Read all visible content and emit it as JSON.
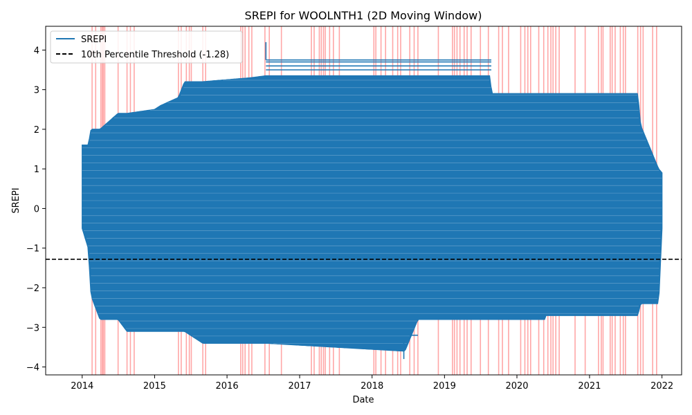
{
  "chart_data": {
    "type": "line",
    "title": "SREPI for WOOLNTH1 (2D Moving Window)",
    "xlabel": "Date",
    "ylabel": "SREPI",
    "xlim": [
      "2013-07-01",
      "2022-04-10"
    ],
    "ylim": [
      -4.2,
      4.6
    ],
    "x_ticks": [
      "2014",
      "2015",
      "2016",
      "2017",
      "2018",
      "2019",
      "2020",
      "2021",
      "2022"
    ],
    "y_ticks": [
      -4,
      -3,
      -2,
      -1,
      0,
      1,
      2,
      3,
      4
    ],
    "threshold": {
      "label": "10th Percentile Threshold (-1.28)",
      "value": -1.28,
      "color": "#000000",
      "style": "dashed"
    },
    "legend": {
      "placement": "top-left",
      "entries": [
        "SREPI",
        "10th Percentile Threshold (-1.28)"
      ]
    },
    "series": [
      {
        "name": "SREPI",
        "color": "#1f77b4",
        "band_start": "2014-01-01",
        "band_end": "2022-01-01",
        "band_points": [
          {
            "x": "2014-01-01",
            "ymin": -0.5,
            "ymax": 1.6
          },
          {
            "x": "2014-02-01",
            "ymin": -1.0,
            "ymax": 1.6
          },
          {
            "x": "2014-02-15",
            "ymin": -2.2,
            "ymax": 2.0
          },
          {
            "x": "2014-04-01",
            "ymin": -2.8,
            "ymax": 2.0
          },
          {
            "x": "2014-07-01",
            "ymin": -2.8,
            "ymax": 2.4
          },
          {
            "x": "2014-08-15",
            "ymin": -3.1,
            "ymax": 2.4
          },
          {
            "x": "2015-01-01",
            "ymin": -3.1,
            "ymax": 2.5
          },
          {
            "x": "2015-02-01",
            "ymin": -3.1,
            "ymax": 2.6
          },
          {
            "x": "2015-05-01",
            "ymin": -3.1,
            "ymax": 2.8
          },
          {
            "x": "2015-06-01",
            "ymin": -3.1,
            "ymax": 3.2
          },
          {
            "x": "2015-09-01",
            "ymin": -3.4,
            "ymax": 3.2
          },
          {
            "x": "2016-05-01",
            "ymin": -3.4,
            "ymax": 3.3
          },
          {
            "x": "2016-07-15",
            "ymin": -3.4,
            "ymax": 3.35
          },
          {
            "x": "2018-06-15",
            "ymin": -3.6,
            "ymax": 3.35
          },
          {
            "x": "2018-08-20",
            "ymin": -2.8,
            "ymax": 3.35
          },
          {
            "x": "2019-08-20",
            "ymin": -2.8,
            "ymax": 3.35
          },
          {
            "x": "2019-08-25",
            "ymin": -2.8,
            "ymax": 2.9
          },
          {
            "x": "2020-05-20",
            "ymin": -2.8,
            "ymax": 2.9
          },
          {
            "x": "2020-05-25",
            "ymin": -2.7,
            "ymax": 2.9
          },
          {
            "x": "2021-09-01",
            "ymin": -2.7,
            "ymax": 2.9
          },
          {
            "x": "2021-09-15",
            "ymin": -2.4,
            "ymax": 2.1
          },
          {
            "x": "2021-12-15",
            "ymin": -2.4,
            "ymax": 1.0
          },
          {
            "x": "2022-01-01",
            "ymin": -0.5,
            "ymax": 0.9
          }
        ],
        "extra_segments": [
          {
            "x1": "2016-07-15",
            "y1": 4.2,
            "x2": "2016-07-15",
            "y2": 3.75
          },
          {
            "x1": "2016-07-15",
            "y1": 3.75,
            "x2": "2019-08-25",
            "y2": 3.75
          },
          {
            "x1": "2019-08-25",
            "y1": 3.7,
            "x2": "2016-07-15",
            "y2": 3.7
          },
          {
            "x1": "2016-07-15",
            "y1": 3.6,
            "x2": "2019-08-25",
            "y2": 3.6
          },
          {
            "x1": "2019-08-25",
            "y1": 3.5,
            "x2": "2016-07-15",
            "y2": 3.5
          },
          {
            "x1": "2018-06-10",
            "y1": -3.35,
            "x2": "2018-06-10",
            "y2": -3.8
          },
          {
            "x1": "2015-09-01",
            "y1": -3.2,
            "x2": "2018-08-20",
            "y2": -3.2
          },
          {
            "x1": "2015-09-01",
            "y1": -3.35,
            "x2": "2018-06-15",
            "y2": -3.35
          }
        ]
      }
    ],
    "drought_markers": {
      "color": "#ff0000",
      "opacity": 0.35,
      "dates": [
        "2014-02-20",
        "2014-03-10",
        "2014-04-05",
        "2014-04-12",
        "2014-04-18",
        "2014-04-25",
        "2014-07-01",
        "2014-08-15",
        "2014-09-01",
        "2014-09-20",
        "2015-05-01",
        "2015-05-15",
        "2015-06-10",
        "2015-06-25",
        "2015-07-05",
        "2015-09-01",
        "2015-09-15",
        "2016-03-10",
        "2016-03-20",
        "2016-04-01",
        "2016-04-20",
        "2016-05-05",
        "2016-07-10",
        "2016-08-01",
        "2016-10-01",
        "2017-03-01",
        "2017-03-15",
        "2017-04-10",
        "2017-04-20",
        "2017-05-01",
        "2017-05-10",
        "2017-06-01",
        "2017-06-20",
        "2017-07-20",
        "2018-01-10",
        "2018-01-20",
        "2018-02-15",
        "2018-03-10",
        "2018-04-15",
        "2018-05-10",
        "2018-05-25",
        "2018-07-10",
        "2018-08-01",
        "2018-08-20",
        "2018-12-01",
        "2019-02-10",
        "2019-02-20",
        "2019-03-05",
        "2019-03-20",
        "2019-04-10",
        "2019-04-25",
        "2019-05-15",
        "2019-07-01",
        "2019-08-10",
        "2019-10-01",
        "2019-10-20",
        "2019-11-20",
        "2020-01-20",
        "2020-02-10",
        "2020-02-25",
        "2020-03-10",
        "2020-04-20",
        "2020-05-15",
        "2020-06-05",
        "2020-06-20",
        "2020-07-01",
        "2020-07-15",
        "2020-08-01",
        "2020-10-20",
        "2020-12-10",
        "2021-02-15",
        "2021-03-01",
        "2021-03-10",
        "2021-04-15",
        "2021-04-25",
        "2021-05-10",
        "2021-06-05",
        "2021-06-20",
        "2021-07-01",
        "2021-09-01",
        "2021-09-15",
        "2021-09-28",
        "2021-11-15",
        "2021-12-05"
      ]
    }
  }
}
